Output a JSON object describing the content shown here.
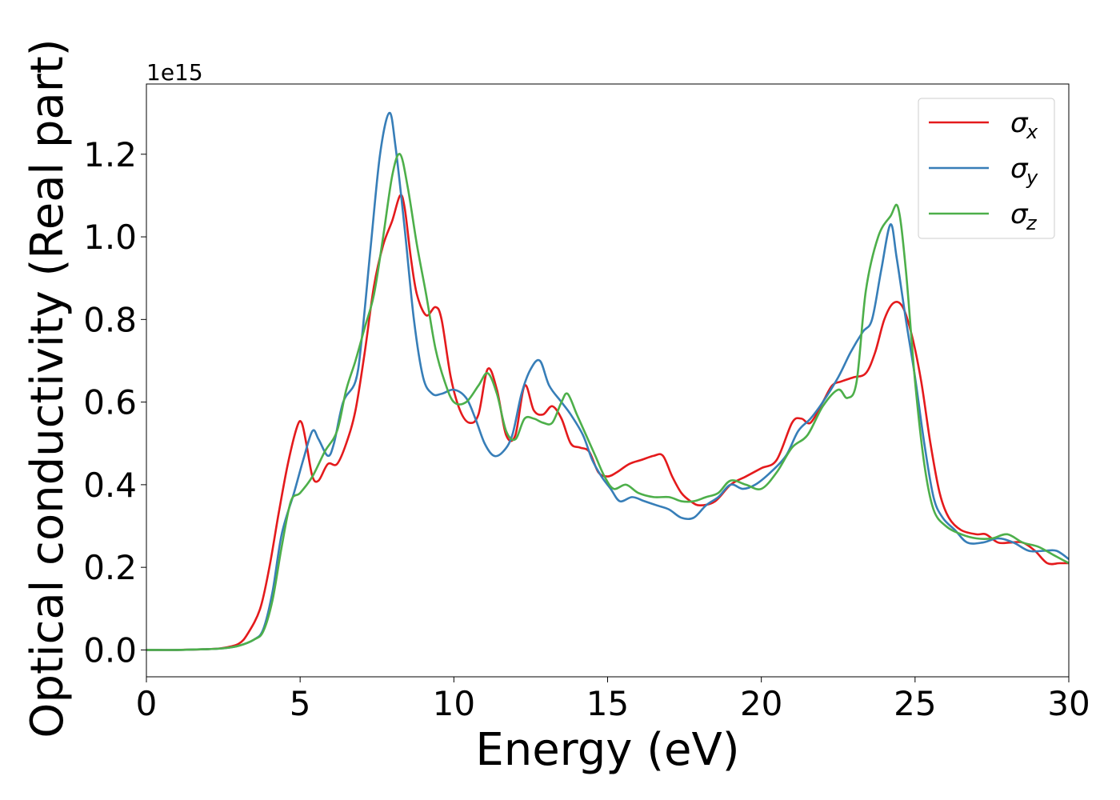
{
  "chart_data": {
    "type": "line",
    "xlabel": "Energy (eV)",
    "ylabel": "Optical conductivity (Real part)",
    "y_offset_label": "1e15",
    "y_scale": 1000000000000000.0,
    "xlim": [
      0,
      30
    ],
    "ylim": [
      -0.065,
      1.37
    ],
    "x_ticks": [
      0,
      5,
      10,
      15,
      20,
      25,
      30
    ],
    "x_tick_labels": [
      "0",
      "5",
      "10",
      "15",
      "20",
      "25",
      "30"
    ],
    "y_ticks": [
      0.0,
      0.2,
      0.4,
      0.6,
      0.8,
      1.0,
      1.2
    ],
    "y_tick_labels": [
      "0.0",
      "0.2",
      "0.4",
      "0.6",
      "0.8",
      "1.0",
      "1.2"
    ],
    "grid": false,
    "legend_position": "top-right",
    "series": [
      {
        "name": "σx",
        "symbol": "σ",
        "subscript": "x",
        "color": "#e41a1c",
        "points": [
          [
            0,
            0
          ],
          [
            1,
            0
          ],
          [
            2,
            0.002
          ],
          [
            2.5,
            0.005
          ],
          [
            3,
            0.015
          ],
          [
            3.3,
            0.04
          ],
          [
            3.7,
            0.1
          ],
          [
            4,
            0.2
          ],
          [
            4.3,
            0.33
          ],
          [
            4.6,
            0.45
          ],
          [
            4.9,
            0.54
          ],
          [
            5.05,
            0.55
          ],
          [
            5.2,
            0.5
          ],
          [
            5.4,
            0.42
          ],
          [
            5.6,
            0.41
          ],
          [
            5.9,
            0.45
          ],
          [
            6.2,
            0.45
          ],
          [
            6.5,
            0.5
          ],
          [
            6.8,
            0.58
          ],
          [
            7.1,
            0.72
          ],
          [
            7.4,
            0.88
          ],
          [
            7.7,
            0.98
          ],
          [
            8,
            1.04
          ],
          [
            8.25,
            1.1
          ],
          [
            8.4,
            1.07
          ],
          [
            8.6,
            0.95
          ],
          [
            8.8,
            0.86
          ],
          [
            9.1,
            0.81
          ],
          [
            9.4,
            0.83
          ],
          [
            9.6,
            0.8
          ],
          [
            9.9,
            0.66
          ],
          [
            10.2,
            0.58
          ],
          [
            10.5,
            0.55
          ],
          [
            10.8,
            0.57
          ],
          [
            11.1,
            0.68
          ],
          [
            11.4,
            0.63
          ],
          [
            11.7,
            0.52
          ],
          [
            12,
            0.52
          ],
          [
            12.3,
            0.64
          ],
          [
            12.6,
            0.58
          ],
          [
            12.9,
            0.57
          ],
          [
            13.2,
            0.59
          ],
          [
            13.5,
            0.56
          ],
          [
            13.8,
            0.5
          ],
          [
            14.1,
            0.49
          ],
          [
            14.4,
            0.48
          ],
          [
            14.7,
            0.43
          ],
          [
            15,
            0.42
          ],
          [
            15.3,
            0.43
          ],
          [
            15.7,
            0.45
          ],
          [
            16.1,
            0.46
          ],
          [
            16.5,
            0.47
          ],
          [
            16.8,
            0.47
          ],
          [
            17.1,
            0.42
          ],
          [
            17.4,
            0.38
          ],
          [
            17.7,
            0.36
          ],
          [
            18,
            0.35
          ],
          [
            18.5,
            0.36
          ],
          [
            19,
            0.4
          ],
          [
            19.5,
            0.42
          ],
          [
            20,
            0.44
          ],
          [
            20.5,
            0.46
          ],
          [
            21,
            0.55
          ],
          [
            21.3,
            0.56
          ],
          [
            21.6,
            0.55
          ],
          [
            22,
            0.6
          ],
          [
            22.3,
            0.64
          ],
          [
            22.6,
            0.65
          ],
          [
            23,
            0.66
          ],
          [
            23.4,
            0.67
          ],
          [
            23.7,
            0.72
          ],
          [
            24,
            0.8
          ],
          [
            24.3,
            0.84
          ],
          [
            24.6,
            0.83
          ],
          [
            24.9,
            0.76
          ],
          [
            25.2,
            0.65
          ],
          [
            25.5,
            0.5
          ],
          [
            25.8,
            0.38
          ],
          [
            26.1,
            0.32
          ],
          [
            26.5,
            0.29
          ],
          [
            27,
            0.28
          ],
          [
            27.3,
            0.28
          ],
          [
            27.7,
            0.26
          ],
          [
            28.1,
            0.26
          ],
          [
            28.5,
            0.26
          ],
          [
            28.9,
            0.24
          ],
          [
            29.3,
            0.21
          ],
          [
            29.7,
            0.21
          ],
          [
            30,
            0.21
          ]
        ]
      },
      {
        "name": "σy",
        "symbol": "σ",
        "subscript": "y",
        "color": "#377eb8",
        "points": [
          [
            0,
            0
          ],
          [
            1,
            0
          ],
          [
            2,
            0.002
          ],
          [
            2.5,
            0.004
          ],
          [
            3,
            0.01
          ],
          [
            3.5,
            0.025
          ],
          [
            3.8,
            0.05
          ],
          [
            4.1,
            0.14
          ],
          [
            4.4,
            0.28
          ],
          [
            4.8,
            0.38
          ],
          [
            5.1,
            0.46
          ],
          [
            5.4,
            0.53
          ],
          [
            5.6,
            0.51
          ],
          [
            5.9,
            0.47
          ],
          [
            6.1,
            0.5
          ],
          [
            6.4,
            0.6
          ],
          [
            6.8,
            0.65
          ],
          [
            7,
            0.75
          ],
          [
            7.3,
            0.98
          ],
          [
            7.6,
            1.2
          ],
          [
            7.9,
            1.3
          ],
          [
            8.1,
            1.22
          ],
          [
            8.4,
            1.02
          ],
          [
            8.7,
            0.8
          ],
          [
            9,
            0.66
          ],
          [
            9.3,
            0.62
          ],
          [
            9.6,
            0.62
          ],
          [
            10,
            0.63
          ],
          [
            10.4,
            0.61
          ],
          [
            10.7,
            0.56
          ],
          [
            11,
            0.5
          ],
          [
            11.3,
            0.47
          ],
          [
            11.6,
            0.48
          ],
          [
            11.9,
            0.52
          ],
          [
            12.2,
            0.62
          ],
          [
            12.5,
            0.68
          ],
          [
            12.8,
            0.7
          ],
          [
            13.1,
            0.64
          ],
          [
            13.5,
            0.6
          ],
          [
            13.8,
            0.57
          ],
          [
            14.2,
            0.52
          ],
          [
            14.5,
            0.46
          ],
          [
            14.8,
            0.42
          ],
          [
            15.1,
            0.39
          ],
          [
            15.4,
            0.36
          ],
          [
            15.8,
            0.37
          ],
          [
            16.2,
            0.36
          ],
          [
            16.6,
            0.35
          ],
          [
            17,
            0.34
          ],
          [
            17.4,
            0.32
          ],
          [
            17.8,
            0.32
          ],
          [
            18.2,
            0.35
          ],
          [
            18.6,
            0.37
          ],
          [
            19,
            0.4
          ],
          [
            19.4,
            0.39
          ],
          [
            19.8,
            0.4
          ],
          [
            20.3,
            0.43
          ],
          [
            20.8,
            0.47
          ],
          [
            21.2,
            0.53
          ],
          [
            21.6,
            0.56
          ],
          [
            22,
            0.6
          ],
          [
            22.5,
            0.66
          ],
          [
            22.9,
            0.72
          ],
          [
            23.3,
            0.77
          ],
          [
            23.6,
            0.8
          ],
          [
            23.9,
            0.92
          ],
          [
            24.2,
            1.03
          ],
          [
            24.4,
            0.95
          ],
          [
            24.7,
            0.8
          ],
          [
            25,
            0.66
          ],
          [
            25.3,
            0.5
          ],
          [
            25.6,
            0.37
          ],
          [
            25.9,
            0.32
          ],
          [
            26.3,
            0.29
          ],
          [
            26.7,
            0.26
          ],
          [
            27.2,
            0.26
          ],
          [
            27.7,
            0.27
          ],
          [
            28.2,
            0.26
          ],
          [
            28.7,
            0.24
          ],
          [
            29.2,
            0.24
          ],
          [
            29.6,
            0.24
          ],
          [
            30,
            0.22
          ]
        ]
      },
      {
        "name": "σz",
        "symbol": "σ",
        "subscript": "z",
        "color": "#4daf4a",
        "points": [
          [
            0,
            0
          ],
          [
            1,
            0
          ],
          [
            2,
            0.002
          ],
          [
            2.5,
            0.004
          ],
          [
            3,
            0.01
          ],
          [
            3.5,
            0.025
          ],
          [
            3.8,
            0.045
          ],
          [
            4.1,
            0.12
          ],
          [
            4.4,
            0.25
          ],
          [
            4.7,
            0.36
          ],
          [
            5,
            0.38
          ],
          [
            5.4,
            0.42
          ],
          [
            5.8,
            0.48
          ],
          [
            6.2,
            0.53
          ],
          [
            6.5,
            0.63
          ],
          [
            6.8,
            0.7
          ],
          [
            7.1,
            0.78
          ],
          [
            7.4,
            0.86
          ],
          [
            7.7,
            1.0
          ],
          [
            8,
            1.15
          ],
          [
            8.25,
            1.2
          ],
          [
            8.5,
            1.12
          ],
          [
            8.8,
            0.98
          ],
          [
            9.1,
            0.86
          ],
          [
            9.4,
            0.73
          ],
          [
            9.7,
            0.65
          ],
          [
            10,
            0.6
          ],
          [
            10.4,
            0.6
          ],
          [
            10.8,
            0.64
          ],
          [
            11.1,
            0.67
          ],
          [
            11.4,
            0.62
          ],
          [
            11.7,
            0.53
          ],
          [
            12,
            0.51
          ],
          [
            12.3,
            0.56
          ],
          [
            12.6,
            0.56
          ],
          [
            12.9,
            0.55
          ],
          [
            13.2,
            0.55
          ],
          [
            13.5,
            0.6
          ],
          [
            13.7,
            0.62
          ],
          [
            14,
            0.57
          ],
          [
            14.3,
            0.52
          ],
          [
            14.6,
            0.47
          ],
          [
            14.9,
            0.42
          ],
          [
            15.2,
            0.39
          ],
          [
            15.6,
            0.4
          ],
          [
            16,
            0.38
          ],
          [
            16.5,
            0.37
          ],
          [
            17,
            0.37
          ],
          [
            17.4,
            0.36
          ],
          [
            17.8,
            0.36
          ],
          [
            18.2,
            0.37
          ],
          [
            18.6,
            0.38
          ],
          [
            19,
            0.41
          ],
          [
            19.5,
            0.4
          ],
          [
            20,
            0.39
          ],
          [
            20.5,
            0.43
          ],
          [
            21,
            0.49
          ],
          [
            21.5,
            0.52
          ],
          [
            22,
            0.59
          ],
          [
            22.5,
            0.63
          ],
          [
            22.8,
            0.61
          ],
          [
            23.1,
            0.65
          ],
          [
            23.4,
            0.87
          ],
          [
            23.8,
            1.0
          ],
          [
            24.2,
            1.05
          ],
          [
            24.45,
            1.07
          ],
          [
            24.7,
            0.92
          ],
          [
            25,
            0.65
          ],
          [
            25.3,
            0.45
          ],
          [
            25.6,
            0.34
          ],
          [
            26,
            0.3
          ],
          [
            26.5,
            0.28
          ],
          [
            27,
            0.27
          ],
          [
            27.5,
            0.27
          ],
          [
            28,
            0.28
          ],
          [
            28.5,
            0.26
          ],
          [
            29,
            0.25
          ],
          [
            29.5,
            0.23
          ],
          [
            30,
            0.21
          ]
        ]
      }
    ]
  }
}
